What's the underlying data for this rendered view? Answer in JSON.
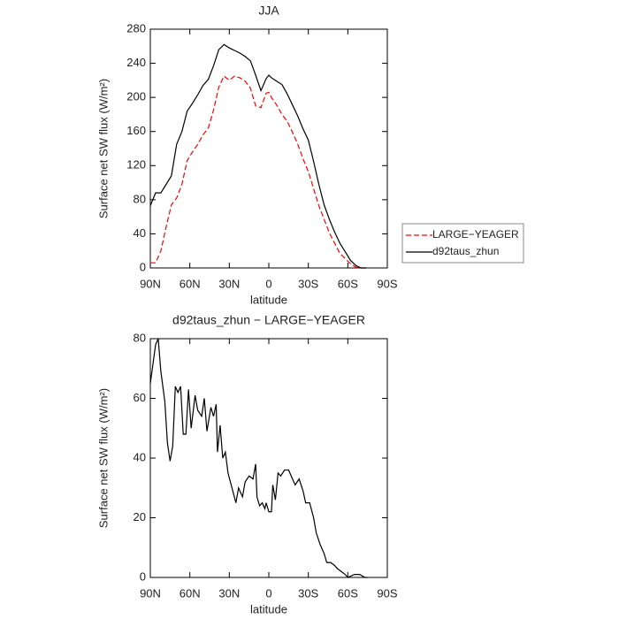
{
  "chart_data": [
    {
      "type": "line",
      "title": "JJA",
      "xlabel": "latitude",
      "ylabel": "Surface net SW flux (W/m²)",
      "x": [
        90,
        86,
        82,
        78,
        74,
        70,
        66,
        62,
        58,
        54,
        50,
        46,
        42,
        38,
        34,
        30,
        26,
        22,
        18,
        14,
        10,
        6,
        2,
        0,
        -2,
        -6,
        -10,
        -14,
        -18,
        -22,
        -26,
        -30,
        -34,
        -38,
        -42,
        -46,
        -50,
        -54,
        -58,
        -62,
        -66,
        -70,
        -74
      ],
      "series": [
        {
          "name": "LARGE−YEAGER",
          "color": "#ff0000",
          "line_style": "dashed",
          "values": [
            6,
            6,
            20,
            48,
            74,
            82,
            98,
            126,
            136,
            145,
            156,
            164,
            185,
            212,
            225,
            220,
            225,
            223,
            219,
            211,
            190,
            188,
            205,
            206,
            200,
            191,
            180,
            172,
            159,
            145,
            128,
            113,
            93,
            73,
            57,
            41,
            29,
            17,
            11,
            5,
            1,
            0,
            0
          ]
        },
        {
          "name": "d92taus_zhun",
          "color": "#000000",
          "line_style": "solid",
          "values": [
            73,
            88,
            88,
            98,
            108,
            145,
            160,
            184,
            193,
            203,
            214,
            221,
            237,
            256,
            262,
            258,
            255,
            252,
            248,
            243,
            226,
            208,
            222,
            226,
            223,
            219,
            215,
            204,
            191,
            178,
            163,
            150,
            125,
            98,
            74,
            57,
            42,
            29,
            19,
            9,
            3,
            0,
            0
          ]
        }
      ],
      "xlim": [
        90,
        -90
      ],
      "xticks": [
        {
          "value": 90,
          "label": "90N"
        },
        {
          "value": 60,
          "label": "60N"
        },
        {
          "value": 30,
          "label": "30N"
        },
        0,
        {
          "value": -30,
          "label": "30S"
        },
        {
          "value": -60,
          "label": "60S"
        },
        {
          "value": -90,
          "label": "90S"
        }
      ],
      "ylim": [
        0,
        280
      ],
      "yticks": [
        0,
        40,
        80,
        120,
        160,
        200,
        240,
        280
      ],
      "legend": "right"
    },
    {
      "type": "line",
      "title": "d92taus_zhun − LARGE−YEAGER",
      "xlabel": "latitude",
      "ylabel": "Surface net SW flux (W/m²)",
      "x": [
        90,
        86,
        84,
        82,
        79,
        77,
        75,
        73,
        71,
        69,
        67,
        65,
        63,
        61,
        59,
        56,
        54,
        51,
        49,
        47,
        44,
        42,
        40,
        39,
        37,
        35,
        33,
        31,
        28,
        25,
        23,
        20,
        18,
        15,
        12,
        10,
        9,
        7,
        5,
        3,
        2,
        0,
        -2,
        -3,
        -5,
        -7,
        -9,
        -12,
        -15,
        -18,
        -20,
        -23,
        -26,
        -28,
        -31,
        -34,
        -36,
        -39,
        -42,
        -44,
        -47,
        -50,
        -52,
        -55,
        -58,
        -60,
        -65,
        -69,
        -73,
        -75
      ],
      "series": [
        {
          "color": "#000000",
          "line_style": "solid",
          "values": [
            65,
            78,
            80,
            69,
            59,
            45,
            39,
            44,
            64,
            62,
            64,
            48,
            48,
            63,
            50,
            61,
            56,
            54,
            60,
            49,
            57,
            54,
            58,
            42,
            51,
            40,
            42,
            35,
            30,
            25,
            30,
            27,
            32,
            34,
            33,
            38,
            27,
            24,
            25,
            23,
            25,
            22,
            22,
            31,
            26,
            35,
            34,
            36,
            36,
            33,
            31,
            33,
            29,
            25,
            25,
            20,
            15,
            11,
            8,
            5,
            5,
            4,
            3,
            2,
            1,
            0,
            1,
            1,
            0,
            0
          ]
        }
      ],
      "xlim": [
        90,
        -90
      ],
      "xticks": [
        {
          "value": 90,
          "label": "90N"
        },
        {
          "value": 60,
          "label": "60N"
        },
        {
          "value": 30,
          "label": "30N"
        },
        0,
        {
          "value": -30,
          "label": "30S"
        },
        {
          "value": -60,
          "label": "60S"
        },
        {
          "value": -90,
          "label": "90S"
        }
      ],
      "ylim": [
        0,
        80
      ],
      "yticks": [
        0,
        20,
        40,
        60,
        80
      ]
    }
  ]
}
